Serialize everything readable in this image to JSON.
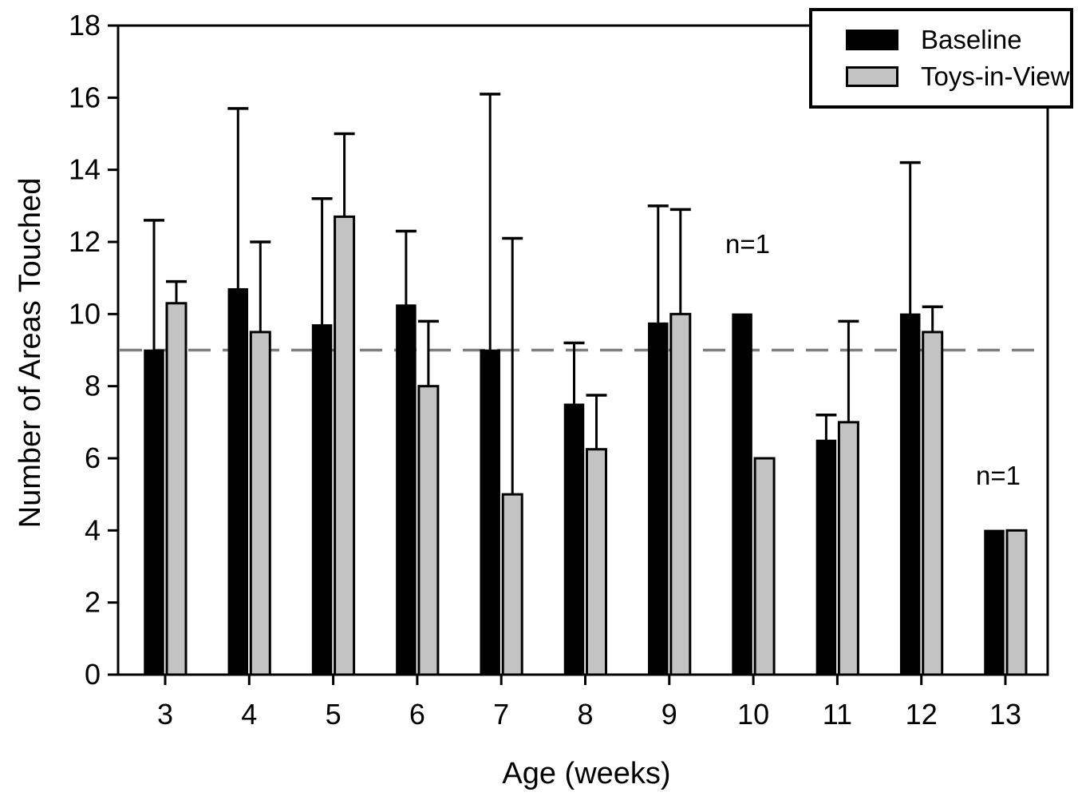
{
  "figure": {
    "background_color": "#ffffff",
    "axis_color": "#000000",
    "reference_line_color": "#7f7f7f"
  },
  "legend": {
    "entries": [
      {
        "label": "Baseline",
        "swatch_color": "#000000"
      },
      {
        "label": "Toys-in-View",
        "swatch_color": "#c3c3c3"
      }
    ],
    "position": "top-right",
    "boxed": true
  },
  "chart_data": {
    "type": "bar",
    "title": "",
    "xlabel": "Age (weeks)",
    "ylabel": "Number of Areas Touched",
    "categories": [
      "3",
      "4",
      "5",
      "6",
      "7",
      "8",
      "9",
      "10",
      "11",
      "12",
      "13"
    ],
    "series": [
      {
        "name": "Baseline",
        "color": "#000000",
        "values": [
          9.0,
          10.7,
          9.7,
          10.25,
          9.0,
          7.5,
          9.75,
          10.0,
          6.5,
          10.0,
          4.0
        ],
        "error_bar_tops": [
          12.6,
          15.7,
          13.2,
          12.3,
          16.1,
          9.2,
          13.0,
          null,
          7.2,
          14.2,
          null
        ]
      },
      {
        "name": "Toys-in-View",
        "color": "#c3c3c3",
        "values": [
          10.3,
          9.5,
          12.7,
          8.0,
          5.0,
          6.25,
          10.0,
          6.0,
          7.0,
          9.5,
          4.0
        ],
        "error_bar_tops": [
          10.9,
          12.0,
          15.0,
          9.8,
          12.1,
          7.75,
          12.9,
          null,
          9.8,
          10.2,
          null
        ]
      }
    ],
    "ylim": [
      0,
      18
    ],
    "ytick_step": 2,
    "xlim_padding_weeks": [
      0.56,
      0.5
    ],
    "reference_line_y": 9,
    "reference_line_style": "dashed",
    "grid": false,
    "legend_position": "top-right",
    "annotations": [
      {
        "text": "n=1",
        "week": "10",
        "y_value": 11.9
      },
      {
        "text": "n=1",
        "week": "13",
        "y_value": 5.5
      }
    ]
  }
}
